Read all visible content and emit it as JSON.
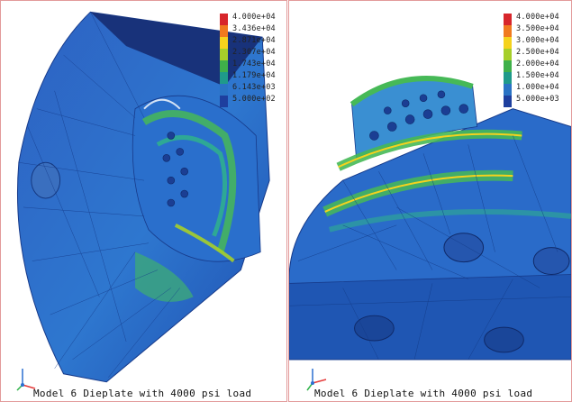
{
  "panels": [
    {
      "caption": "Model 6 Dieplate with 4000 psi load",
      "legend": {
        "labels": [
          "4.000e+04",
          "3.436e+04",
          "2.871e+04",
          "2.307e+04",
          "1.743e+04",
          "1.179e+04",
          "6.143e+03",
          "5.000e+02"
        ],
        "colors": [
          "#d7262b",
          "#f07a1f",
          "#f5d21d",
          "#a6cf2a",
          "#3fb04a",
          "#1f9a8a",
          "#2a73c4",
          "#1e3f9e"
        ]
      }
    },
    {
      "caption": "Model 6 Dieplate with 4000 psi load",
      "legend": {
        "labels": [
          "4.000e+04",
          "3.500e+04",
          "3.000e+04",
          "2.500e+04",
          "2.000e+04",
          "1.500e+04",
          "1.000e+04",
          "5.000e+03"
        ],
        "colors": [
          "#d7262b",
          "#f07a1f",
          "#f5d21d",
          "#a6cf2a",
          "#3fb04a",
          "#1f9a8a",
          "#2a73c4",
          "#1e3f9e"
        ]
      }
    }
  ],
  "triad": {
    "axis_colors": [
      "#e53b3b",
      "#2fb34a",
      "#2b6fd1"
    ]
  }
}
